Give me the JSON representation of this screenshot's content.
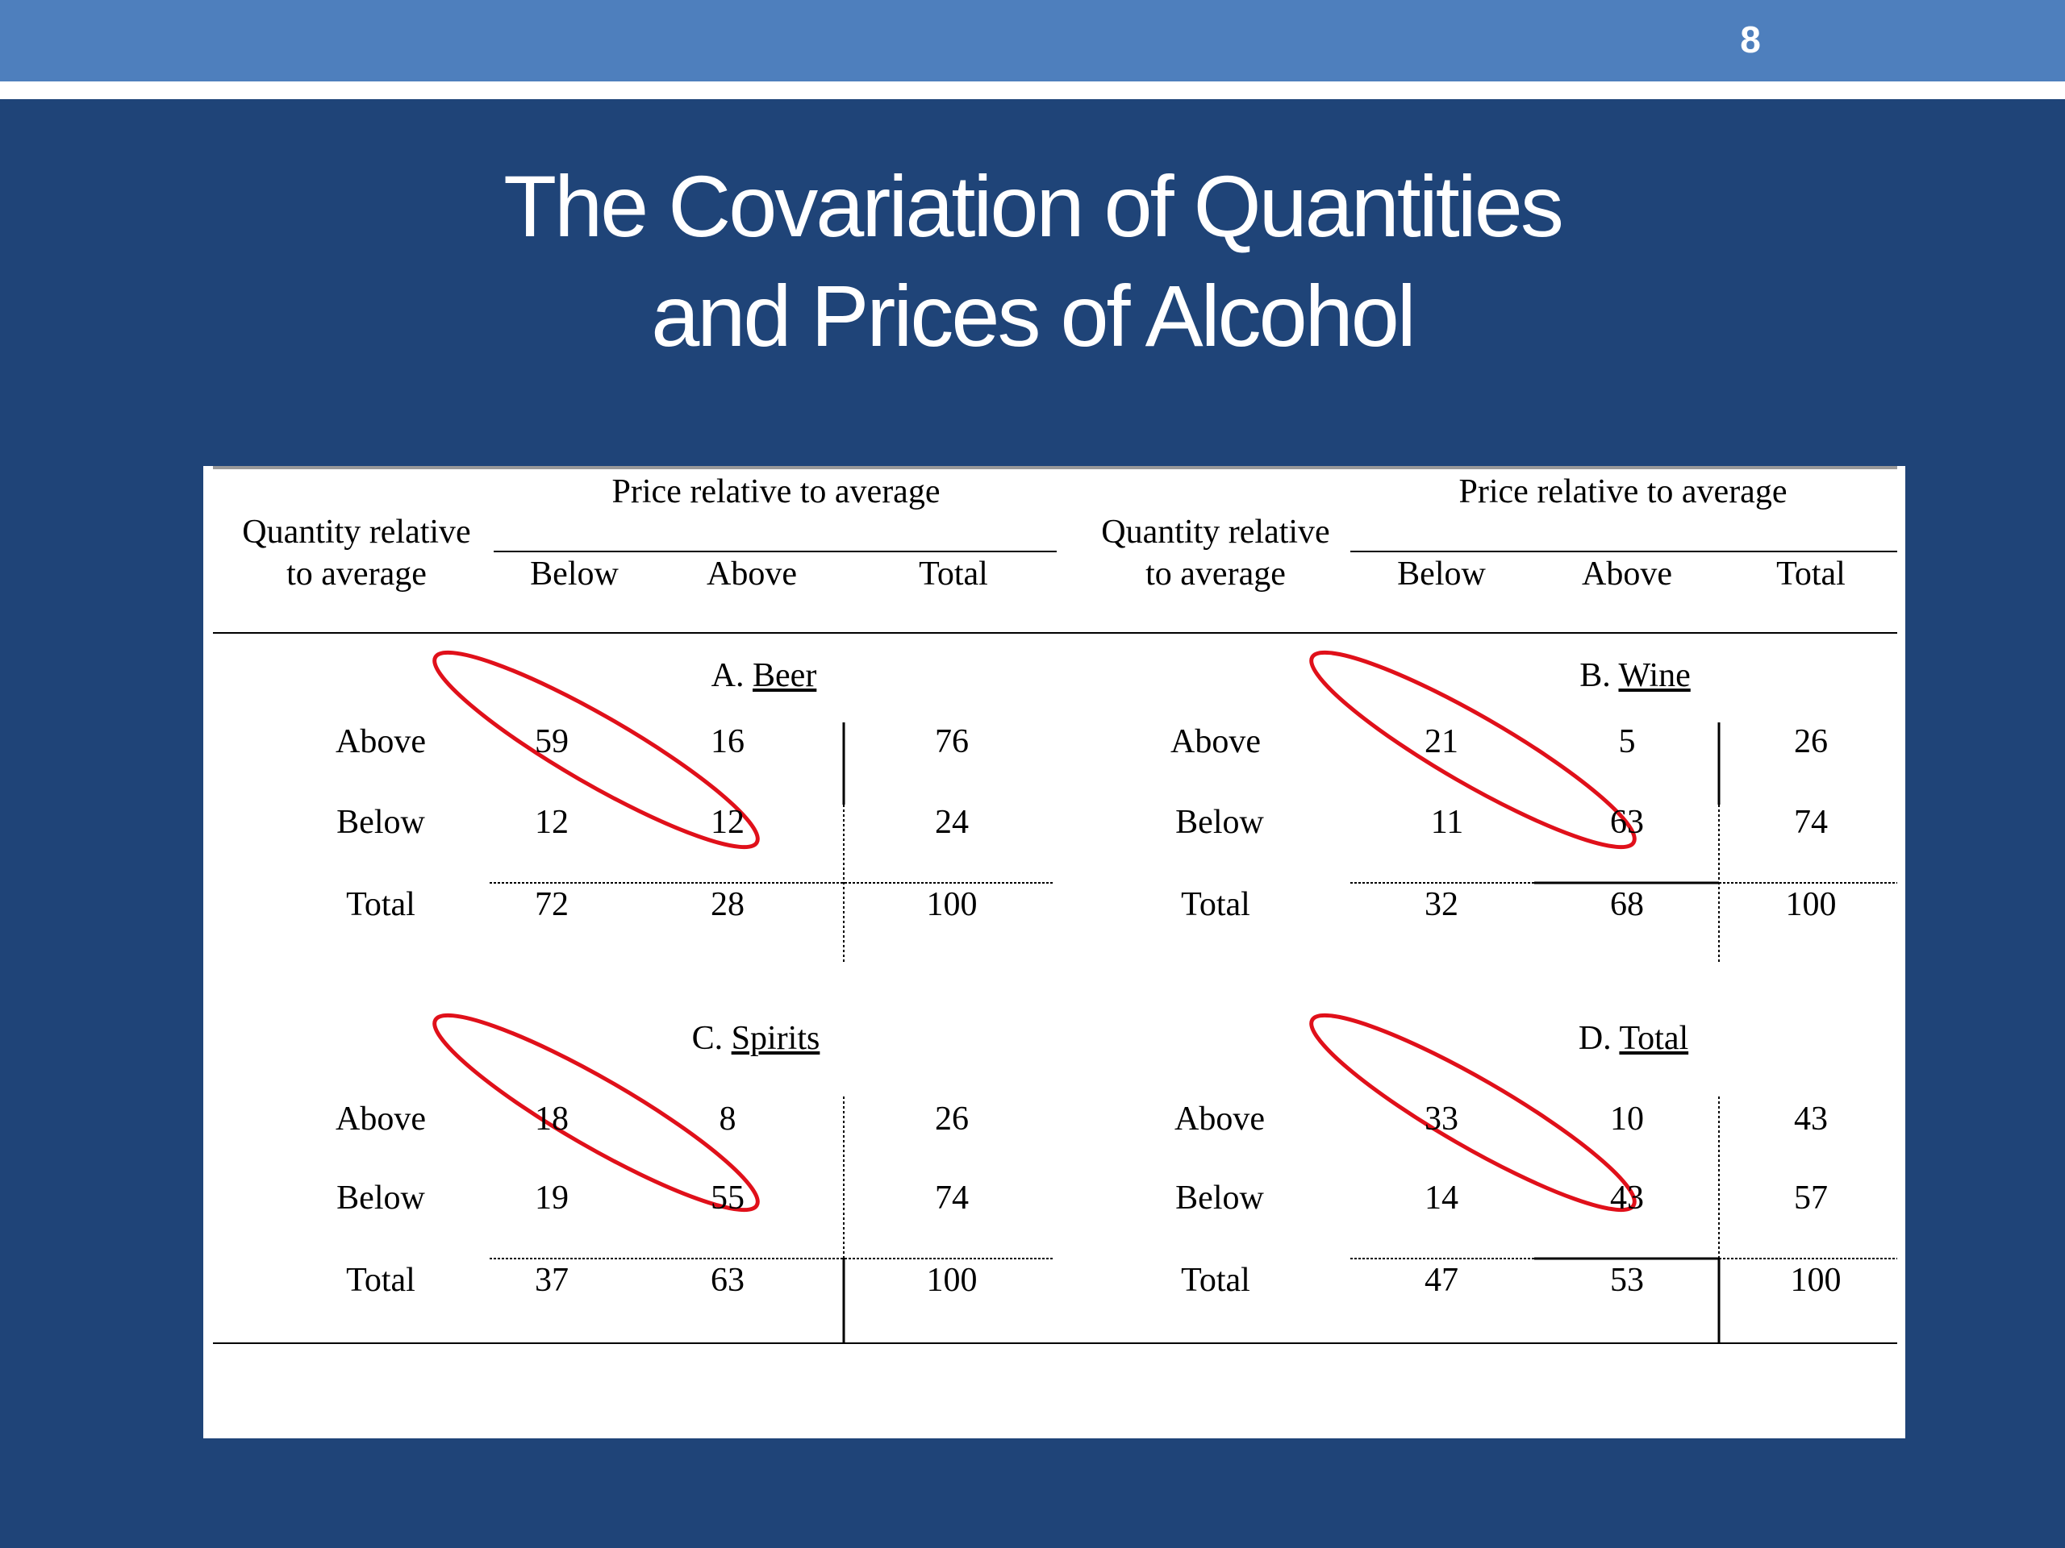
{
  "slide_number": "8",
  "title": {
    "line1": "The Covariation of Quantities",
    "line2": "and Prices of Alcohol"
  },
  "headers": {
    "quantity_line1": "Quantity relative",
    "quantity_line2": "to average",
    "price": "Price relative to average",
    "below": "Below",
    "above": "Above",
    "total": "Total"
  },
  "row_labels": {
    "above": "Above",
    "below": "Below",
    "total": "Total"
  },
  "panels": {
    "beer": {
      "prefix": "A.",
      "name": "Beer",
      "above": [
        "59",
        "16",
        "76"
      ],
      "below": [
        "12",
        "12",
        "24"
      ],
      "total": [
        "72",
        "28",
        "100"
      ]
    },
    "wine": {
      "prefix": "B.",
      "name": "Wine",
      "above": [
        "21",
        "5",
        "26"
      ],
      "below": [
        "11",
        "63",
        "74"
      ],
      "total": [
        "32",
        "68",
        "100"
      ]
    },
    "spirits": {
      "prefix": "C.",
      "name": "Spirits",
      "above": [
        "18",
        "8",
        "26"
      ],
      "below": [
        "19",
        "55",
        "74"
      ],
      "total": [
        "37",
        "63",
        "100"
      ]
    },
    "total": {
      "prefix": "D.",
      "name": "Total",
      "above": [
        "33",
        "10",
        "43"
      ],
      "below": [
        "14",
        "43",
        "57"
      ],
      "total": [
        "47",
        "53",
        "100"
      ]
    }
  },
  "colors": {
    "background": "#1f4478",
    "topbar": "#4e7fbd",
    "highlight": "#e0101a"
  }
}
